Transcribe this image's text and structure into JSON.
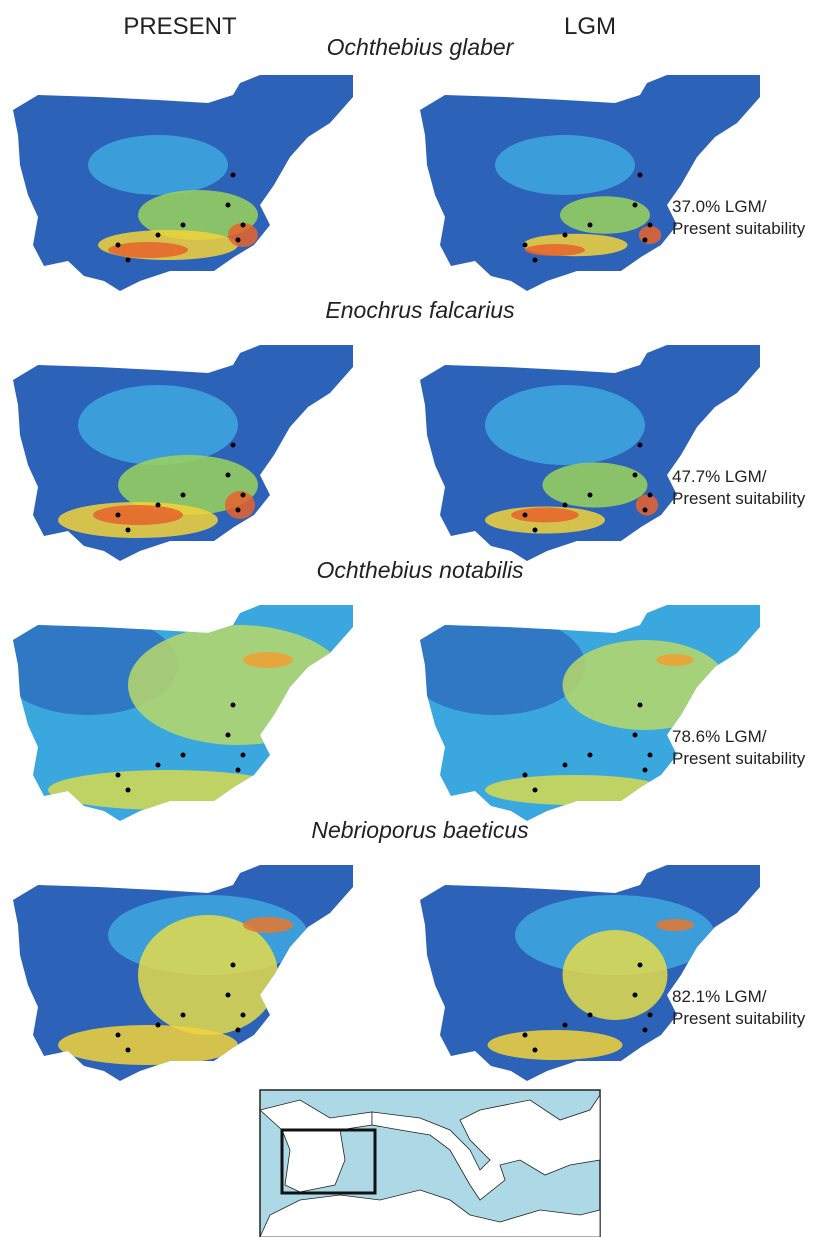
{
  "columns": [
    "PRESENT",
    "LGM"
  ],
  "panels": [
    {
      "species": "Ochthebius glaber",
      "note": [
        "37.0% LGM/",
        "Present suitability"
      ]
    },
    {
      "species": "Enochrus falcarius",
      "note": [
        "47.7% LGM/",
        "Present suitability"
      ]
    },
    {
      "species": "Ochthebius notabilis",
      "note": [
        "78.6% LGM/",
        "Present suitability"
      ]
    },
    {
      "species": "Nebrioporus baeticus",
      "note": [
        "82.1% LGM/",
        "Present suitability"
      ]
    }
  ]
}
